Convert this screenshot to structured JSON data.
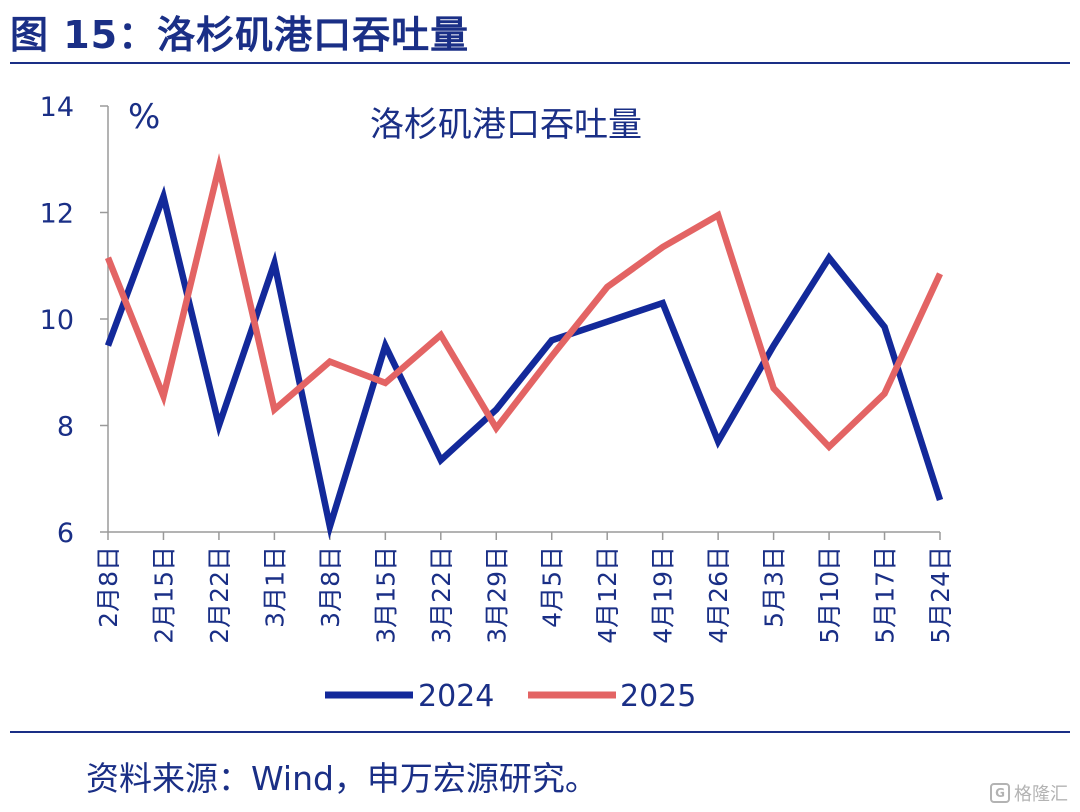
{
  "figure_title": "图 15：洛杉矶港口吞吐量",
  "source_note": "资料来源：Wind，申万宏源研究。",
  "watermark": "格隆汇",
  "chart_data": {
    "type": "line",
    "title": "洛杉矶港口吞吐量",
    "unit_label": "%",
    "x": [
      "2月8日",
      "2月15日",
      "2月22日",
      "3月1日",
      "3月8日",
      "3月15日",
      "3月22日",
      "3月29日",
      "4月5日",
      "4月12日",
      "4月19日",
      "4月26日",
      "5月3日",
      "5月10日",
      "5月17日",
      "5月24日"
    ],
    "ylim": [
      6,
      14
    ],
    "yticks": [
      6,
      8,
      10,
      12,
      14
    ],
    "grid": false,
    "legend_position": "bottom",
    "series": [
      {
        "name": "2024",
        "color": "#13299a",
        "values": [
          9.5,
          12.3,
          8.0,
          11.05,
          6.1,
          9.5,
          7.35,
          8.3,
          9.6,
          9.95,
          10.3,
          7.7,
          9.5,
          11.15,
          9.85,
          6.6
        ]
      },
      {
        "name": "2025",
        "color": "#e36464",
        "values": [
          11.15,
          8.55,
          12.85,
          8.3,
          9.2,
          8.8,
          9.7,
          7.95,
          9.3,
          10.6,
          11.35,
          11.95,
          8.7,
          7.6,
          8.6,
          10.85
        ]
      }
    ]
  }
}
